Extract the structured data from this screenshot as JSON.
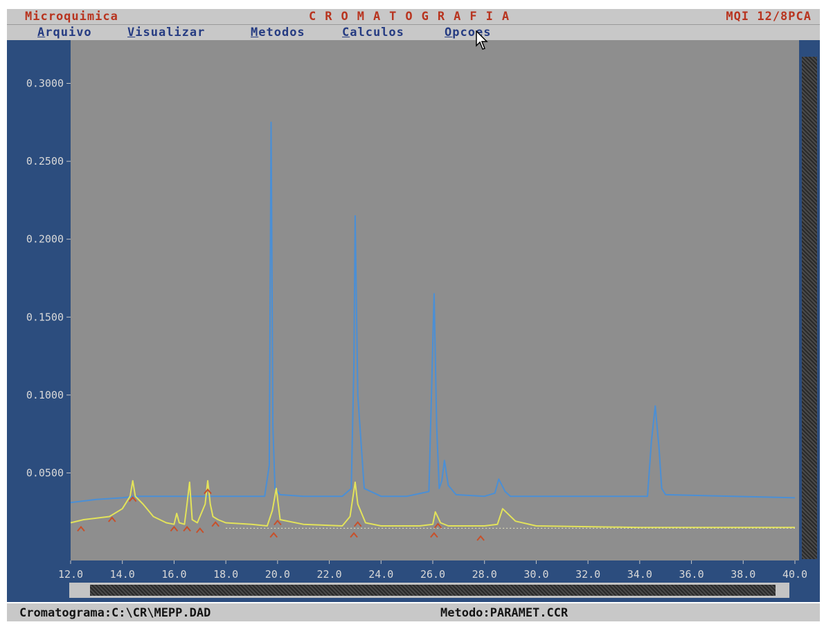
{
  "titlebar": {
    "app_name": "Microquimica",
    "title": "CROMATOGRAFIA",
    "model": "MQI 12/8PCA"
  },
  "menu": {
    "items": [
      {
        "hotkey": "A",
        "rest": "rquivo"
      },
      {
        "hotkey": "V",
        "rest": "isualizar"
      },
      {
        "hotkey": "M",
        "rest": "etodos"
      },
      {
        "hotkey": "C",
        "rest": "alculos"
      },
      {
        "hotkey": "O",
        "rest": "pcoes"
      }
    ]
  },
  "status": {
    "file": "Cromatograma:C:\\CR\\MEPP.DAD",
    "method": "Metodo:PARAMET.CCR"
  },
  "colors": {
    "plot_bg": "#8e8e8e",
    "frame": "#2c4d7e",
    "series_blue": "#4a8fd6",
    "series_yellow": "#e3e35a",
    "marker": "#c8502a",
    "title_red": "#b8341f",
    "menu_blue": "#263c82"
  },
  "chart_data": {
    "type": "line",
    "xlim": [
      12.0,
      40.0
    ],
    "ylim": [
      0.0,
      0.31
    ],
    "x_ticks": [
      "12.0",
      "14.0",
      "16.0",
      "18.0",
      "20.0",
      "22.0",
      "24.0",
      "26.0",
      "28.0",
      "30.0",
      "32.0",
      "34.0",
      "36.0",
      "38.0",
      "40.0"
    ],
    "y_ticks": [
      "0.0500",
      "0.1000",
      "0.1500",
      "0.2000",
      "0.2500",
      "0.3000"
    ],
    "grid": false,
    "series": [
      {
        "color": "#4a8fd6",
        "x": [
          12.0,
          13.0,
          14.0,
          14.5,
          15.0,
          16.0,
          19.5,
          19.68,
          19.75,
          19.82,
          19.9,
          20.1,
          21.0,
          22.5,
          22.85,
          22.95,
          23.0,
          23.1,
          23.35,
          24.0,
          25.0,
          25.85,
          25.95,
          26.05,
          26.15,
          26.25,
          26.35,
          26.45,
          26.6,
          26.9,
          28.0,
          28.4,
          28.55,
          28.8,
          29.0,
          33.5,
          34.3,
          34.45,
          34.6,
          34.75,
          34.85,
          35.0,
          40.0
        ],
        "y": [
          0.031,
          0.033,
          0.034,
          0.035,
          0.035,
          0.035,
          0.035,
          0.055,
          0.275,
          0.08,
          0.04,
          0.036,
          0.035,
          0.035,
          0.04,
          0.12,
          0.215,
          0.1,
          0.04,
          0.035,
          0.035,
          0.038,
          0.1,
          0.165,
          0.08,
          0.04,
          0.045,
          0.058,
          0.042,
          0.036,
          0.035,
          0.037,
          0.046,
          0.038,
          0.035,
          0.035,
          0.035,
          0.07,
          0.093,
          0.065,
          0.04,
          0.036,
          0.034
        ]
      },
      {
        "color": "#e3e35a",
        "x": [
          12.0,
          12.5,
          13.0,
          13.5,
          14.0,
          14.3,
          14.4,
          14.5,
          14.8,
          15.2,
          15.7,
          16.0,
          16.1,
          16.2,
          16.4,
          16.5,
          16.6,
          16.7,
          16.9,
          17.2,
          17.3,
          17.4,
          17.5,
          17.7,
          18.0,
          19.0,
          19.6,
          19.8,
          19.95,
          20.1,
          21.0,
          22.5,
          22.8,
          23.0,
          23.1,
          23.4,
          24.0,
          25.5,
          26.0,
          26.1,
          26.3,
          26.6,
          28.0,
          28.5,
          28.7,
          29.2,
          30.0,
          34.0,
          40.0
        ],
        "y": [
          0.018,
          0.02,
          0.021,
          0.022,
          0.027,
          0.035,
          0.045,
          0.035,
          0.03,
          0.022,
          0.018,
          0.017,
          0.024,
          0.018,
          0.017,
          0.03,
          0.044,
          0.02,
          0.018,
          0.03,
          0.045,
          0.03,
          0.022,
          0.02,
          0.018,
          0.017,
          0.016,
          0.026,
          0.04,
          0.02,
          0.017,
          0.016,
          0.022,
          0.044,
          0.03,
          0.018,
          0.016,
          0.016,
          0.017,
          0.025,
          0.018,
          0.016,
          0.016,
          0.017,
          0.027,
          0.019,
          0.016,
          0.015,
          0.015
        ]
      }
    ],
    "markers": [
      {
        "x": 12.4,
        "y": 0.014
      },
      {
        "x": 13.6,
        "y": 0.02
      },
      {
        "x": 14.4,
        "y": 0.033
      },
      {
        "x": 16.0,
        "y": 0.014
      },
      {
        "x": 16.5,
        "y": 0.014
      },
      {
        "x": 17.0,
        "y": 0.013
      },
      {
        "x": 17.3,
        "y": 0.038
      },
      {
        "x": 17.6,
        "y": 0.017
      },
      {
        "x": 19.85,
        "y": 0.01
      },
      {
        "x": 20.0,
        "y": 0.018
      },
      {
        "x": 22.95,
        "y": 0.01
      },
      {
        "x": 23.1,
        "y": 0.017
      },
      {
        "x": 26.05,
        "y": 0.01
      },
      {
        "x": 26.2,
        "y": 0.016
      },
      {
        "x": 27.85,
        "y": 0.008
      }
    ]
  }
}
